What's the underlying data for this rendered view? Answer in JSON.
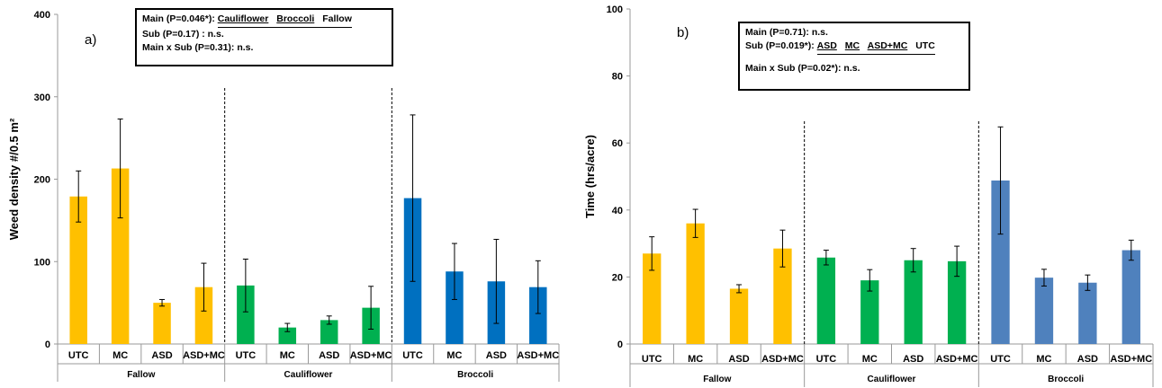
{
  "chart_data": [
    {
      "type": "bar",
      "panel_label": "a)",
      "ylabel": "Weed density #/0.5 m²",
      "ylim": [
        0,
        400
      ],
      "yticks": [
        0,
        100,
        200,
        300,
        400
      ],
      "grid": false,
      "groups": [
        "Fallow",
        "Cauliflower",
        "Broccoli"
      ],
      "categories": [
        "UTC",
        "MC",
        "ASD",
        "ASD+MC"
      ],
      "colors": [
        "#FFC000",
        "#00B050",
        "#0070C0"
      ],
      "series": [
        {
          "values": [
            179,
            213,
            50,
            69
          ],
          "errors": [
            31,
            60,
            4,
            29
          ]
        },
        {
          "values": [
            71,
            20,
            29,
            44
          ],
          "errors": [
            32,
            5,
            5,
            26
          ]
        },
        {
          "values": [
            177,
            88,
            76,
            69
          ],
          "errors": [
            101,
            34,
            51,
            32
          ]
        }
      ],
      "stats": {
        "main": "Main (P=0.046*):",
        "main_order": [
          "Cauliflower",
          "Broccoli",
          "Fallow"
        ],
        "sub": "Sub (P=0.17) :  n.s.",
        "interaction": "Main x Sub (P=0.31): n.s."
      }
    },
    {
      "type": "bar",
      "panel_label": "b)",
      "ylabel": "Time (hrs/acre)",
      "ylim": [
        0,
        100
      ],
      "yticks": [
        0,
        20,
        40,
        60,
        80,
        100
      ],
      "grid": false,
      "groups": [
        "Fallow",
        "Cauliflower",
        "Broccoli"
      ],
      "categories": [
        "UTC",
        "MC",
        "ASD",
        "ASD+MC"
      ],
      "colors": [
        "#FFC000",
        "#00B050",
        "#4F81BD"
      ],
      "series": [
        {
          "values": [
            27,
            36,
            16.5,
            28.5
          ],
          "errors": [
            5,
            4.2,
            1.2,
            5.5
          ]
        },
        {
          "values": [
            25.8,
            19,
            25,
            24.7
          ],
          "errors": [
            2.2,
            3.2,
            3.5,
            4.5
          ]
        },
        {
          "values": [
            48.8,
            19.8,
            18.3,
            28
          ],
          "errors": [
            16,
            2.5,
            2.3,
            3
          ]
        }
      ],
      "stats": {
        "main": "Main (P=0.71): n.s.",
        "sub": "Sub (P=0.019*):",
        "sub_order": [
          "ASD",
          "MC",
          "ASD+MC",
          "UTC"
        ],
        "interaction": "Main x Sub (P=0.02*): n.s."
      }
    }
  ]
}
